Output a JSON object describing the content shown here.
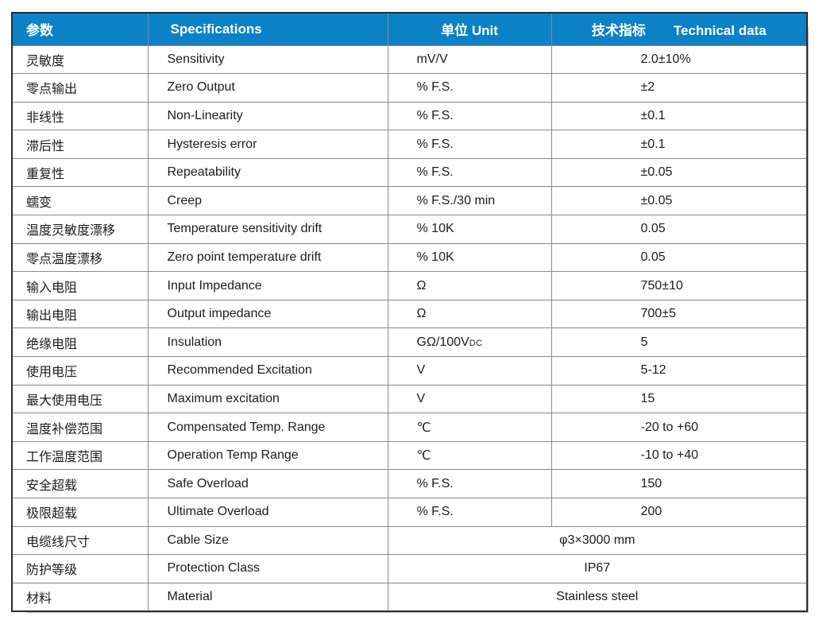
{
  "table": {
    "header": {
      "param": "参数",
      "spec": "Specifications",
      "unit": "单位 Unit",
      "tech_cn": "技术指标",
      "tech_en": "Technical data"
    },
    "rows": [
      {
        "cn": "灵敏度",
        "en": "Sensitivity",
        "unit": "mV/V",
        "value": "2.0±10%"
      },
      {
        "cn": "零点输出",
        "en": "Zero Output",
        "unit": "% F.S.",
        "value": "±2"
      },
      {
        "cn": "非线性",
        "en": "Non-Linearity",
        "unit": "% F.S.",
        "value": "±0.1"
      },
      {
        "cn": "滞后性",
        "en": "Hysteresis error",
        "unit": "% F.S.",
        "value": "±0.1"
      },
      {
        "cn": "重复性",
        "en": "Repeatability",
        "unit": "% F.S.",
        "value": "±0.05"
      },
      {
        "cn": "蠕变",
        "en": "Creep",
        "unit": "% F.S./30 min",
        "value": "±0.05"
      },
      {
        "cn": "温度灵敏度漂移",
        "en": "Temperature sensitivity drift",
        "unit": "% 10K",
        "value": "0.05"
      },
      {
        "cn": "零点温度漂移",
        "en": "Zero point temperature drift",
        "unit": "% 10K",
        "value": "0.05"
      },
      {
        "cn": "输入电阻",
        "en": "Input Impedance",
        "unit": "Ω",
        "value": "750±10"
      },
      {
        "cn": "输出电阻",
        "en": "Output impedance",
        "unit": "Ω",
        "value": "700±5"
      },
      {
        "cn": "绝缘电阻",
        "en": "Insulation",
        "unit": "GΩ/100V",
        "unit_small": "DC",
        "value": "5"
      },
      {
        "cn": "使用电压",
        "en": "Recommended Excitation",
        "unit": "V",
        "value": "5-12"
      },
      {
        "cn": "最大使用电压",
        "en": "Maximum excitation",
        "unit": "V",
        "value": "15"
      },
      {
        "cn": "温度补偿范围",
        "en": "Compensated Temp. Range",
        "unit": "℃",
        "value": "-20 to +60"
      },
      {
        "cn": "工作温度范围",
        "en": "Operation Temp Range",
        "unit": "℃",
        "value": "-10 to +40"
      },
      {
        "cn": "安全超载",
        "en": "Safe Overload",
        "unit": "% F.S.",
        "value": "150"
      },
      {
        "cn": "极限超载",
        "en": "Ultimate Overload",
        "unit": "% F.S.",
        "value": "200"
      },
      {
        "cn": "电缆线尺寸",
        "en": "Cable Size",
        "merged": "φ3×3000 mm"
      },
      {
        "cn": "防护等级",
        "en": "Protection Class",
        "merged": "IP67"
      },
      {
        "cn": "材料",
        "en": "Material",
        "merged": "Stainless steel"
      }
    ]
  },
  "colors": {
    "header_bg": "#0c81c6",
    "header_text": "#ffffff",
    "grid_line": "#8a8a8a",
    "outer_border": "#2d2d2d",
    "body_text": "#1c1c1c"
  }
}
